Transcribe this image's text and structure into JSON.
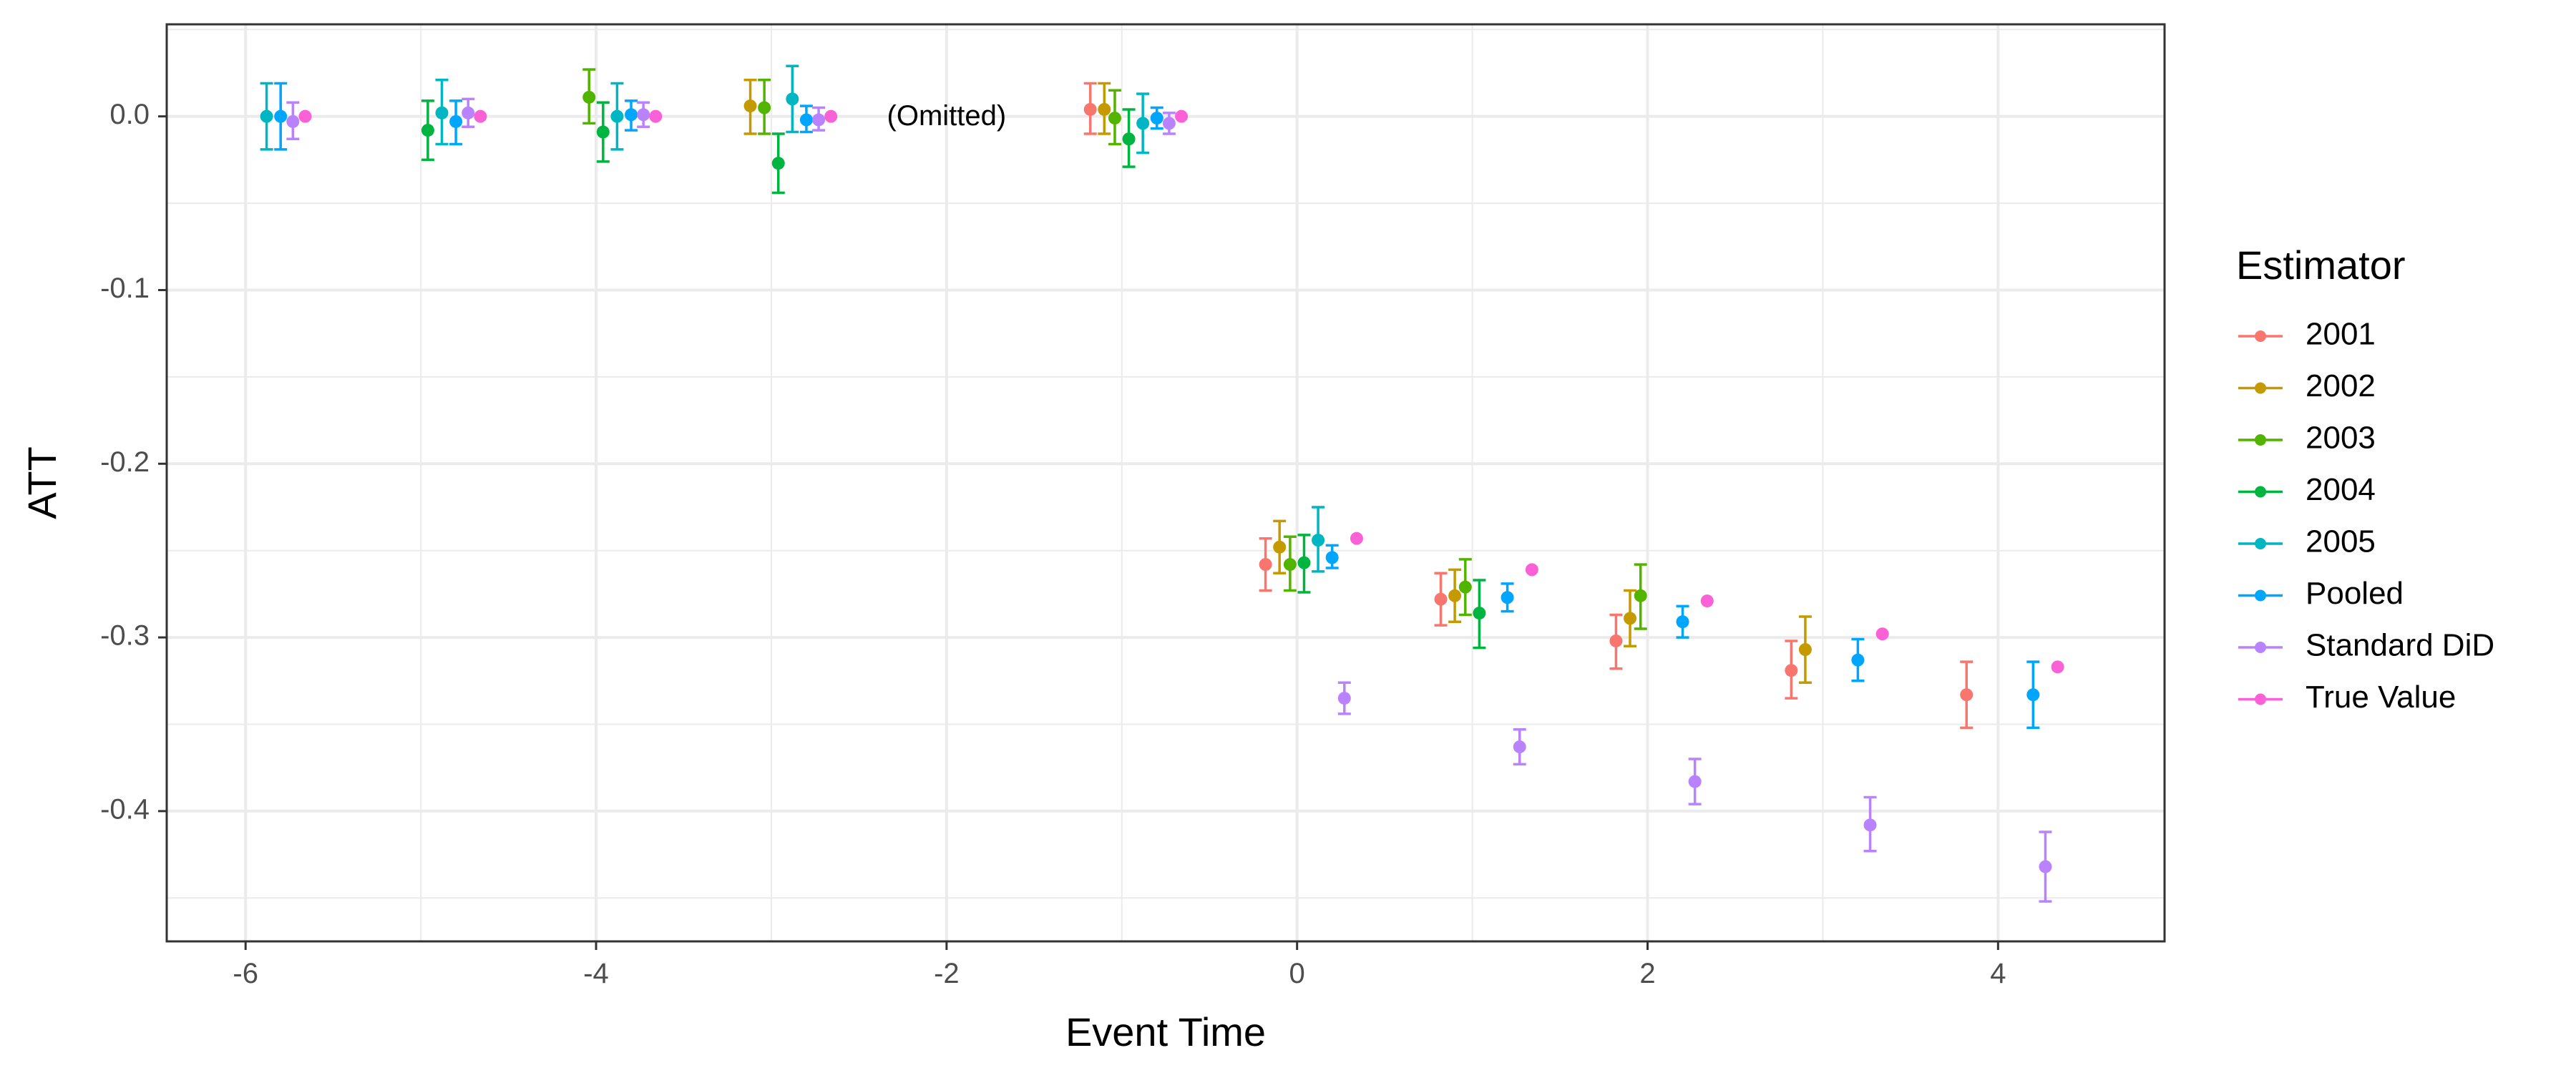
{
  "chart_data": {
    "type": "scatter",
    "xlabel": "Event Time",
    "ylabel": "ATT",
    "xlim": [
      -6.45,
      4.95
    ],
    "ylim": [
      -0.475,
      0.053
    ],
    "x_ticks": [
      -6,
      -4,
      -2,
      0,
      2,
      4
    ],
    "x_tick_labels": [
      "-6",
      "-4",
      "-2",
      "0",
      "2",
      "4"
    ],
    "y_ticks": [
      0.0,
      -0.1,
      -0.2,
      -0.3,
      -0.4
    ],
    "y_tick_labels": [
      "0.0",
      "-0.1",
      "-0.2",
      "-0.3",
      "-0.4"
    ],
    "grid": true,
    "legend": {
      "title": "Estimator",
      "placement": "right"
    },
    "annotation": {
      "text": "(Omitted)",
      "x": -2,
      "y": 0.0
    },
    "series": [
      {
        "name": "2001",
        "color": "#F8766D",
        "points": [
          {
            "x": -1.18,
            "y": 0.004,
            "lo": -0.01,
            "hi": 0.019
          },
          {
            "x": -0.18,
            "y": -0.258,
            "lo": -0.273,
            "hi": -0.243
          },
          {
            "x": 0.82,
            "y": -0.278,
            "lo": -0.293,
            "hi": -0.263
          },
          {
            "x": 1.82,
            "y": -0.302,
            "lo": -0.318,
            "hi": -0.287
          },
          {
            "x": 2.82,
            "y": -0.319,
            "lo": -0.335,
            "hi": -0.302
          },
          {
            "x": 3.82,
            "y": -0.333,
            "lo": -0.352,
            "hi": -0.314
          }
        ]
      },
      {
        "name": "2002",
        "color": "#C49A00",
        "points": [
          {
            "x": -3.12,
            "y": 0.006,
            "lo": -0.01,
            "hi": 0.021
          },
          {
            "x": -1.1,
            "y": 0.004,
            "lo": -0.01,
            "hi": 0.019
          },
          {
            "x": -0.1,
            "y": -0.248,
            "lo": -0.263,
            "hi": -0.233
          },
          {
            "x": 0.9,
            "y": -0.276,
            "lo": -0.291,
            "hi": -0.261
          },
          {
            "x": 1.9,
            "y": -0.289,
            "lo": -0.305,
            "hi": -0.273
          },
          {
            "x": 2.9,
            "y": -0.307,
            "lo": -0.326,
            "hi": -0.288
          }
        ]
      },
      {
        "name": "2003",
        "color": "#53B400",
        "points": [
          {
            "x": -4.04,
            "y": 0.011,
            "lo": -0.004,
            "hi": 0.027
          },
          {
            "x": -3.04,
            "y": 0.005,
            "lo": -0.01,
            "hi": 0.021
          },
          {
            "x": -1.04,
            "y": -0.001,
            "lo": -0.016,
            "hi": 0.015
          },
          {
            "x": -0.04,
            "y": -0.258,
            "lo": -0.273,
            "hi": -0.242
          },
          {
            "x": 0.96,
            "y": -0.271,
            "lo": -0.287,
            "hi": -0.255
          },
          {
            "x": 1.96,
            "y": -0.276,
            "lo": -0.295,
            "hi": -0.258
          }
        ]
      },
      {
        "name": "2004",
        "color": "#00B440",
        "points": [
          {
            "x": -4.96,
            "y": -0.008,
            "lo": -0.025,
            "hi": 0.009
          },
          {
            "x": -3.96,
            "y": -0.009,
            "lo": -0.026,
            "hi": 0.008
          },
          {
            "x": -2.96,
            "y": -0.027,
            "lo": -0.044,
            "hi": -0.01
          },
          {
            "x": -0.96,
            "y": -0.013,
            "lo": -0.029,
            "hi": 0.004
          },
          {
            "x": 0.04,
            "y": -0.257,
            "lo": -0.274,
            "hi": -0.241
          },
          {
            "x": 1.04,
            "y": -0.286,
            "lo": -0.306,
            "hi": -0.267
          }
        ]
      },
      {
        "name": "2005",
        "color": "#00B6C3",
        "points": [
          {
            "x": -5.88,
            "y": 0.0,
            "lo": -0.019,
            "hi": 0.019
          },
          {
            "x": -4.88,
            "y": 0.002,
            "lo": -0.016,
            "hi": 0.021
          },
          {
            "x": -3.88,
            "y": 0.0,
            "lo": -0.019,
            "hi": 0.019
          },
          {
            "x": -2.88,
            "y": 0.01,
            "lo": -0.009,
            "hi": 0.029
          },
          {
            "x": -0.88,
            "y": -0.004,
            "lo": -0.021,
            "hi": 0.013
          },
          {
            "x": 0.12,
            "y": -0.244,
            "lo": -0.262,
            "hi": -0.225
          }
        ]
      },
      {
        "name": "Pooled",
        "color": "#00A5FF",
        "points": [
          {
            "x": -5.8,
            "y": 0.0,
            "lo": -0.019,
            "hi": 0.019
          },
          {
            "x": -4.8,
            "y": -0.003,
            "lo": -0.016,
            "hi": 0.009
          },
          {
            "x": -3.8,
            "y": 0.001,
            "lo": -0.008,
            "hi": 0.009
          },
          {
            "x": -2.8,
            "y": -0.002,
            "lo": -0.009,
            "hi": 0.006
          },
          {
            "x": -0.8,
            "y": -0.001,
            "lo": -0.007,
            "hi": 0.005
          },
          {
            "x": 0.2,
            "y": -0.254,
            "lo": -0.26,
            "hi": -0.247
          },
          {
            "x": 1.2,
            "y": -0.277,
            "lo": -0.285,
            "hi": -0.269
          },
          {
            "x": 2.2,
            "y": -0.291,
            "lo": -0.3,
            "hi": -0.282
          },
          {
            "x": 3.2,
            "y": -0.313,
            "lo": -0.325,
            "hi": -0.301
          },
          {
            "x": 4.2,
            "y": -0.333,
            "lo": -0.352,
            "hi": -0.314
          }
        ]
      },
      {
        "name": "Standard DiD",
        "color": "#B983FF",
        "points": [
          {
            "x": -5.73,
            "y": -0.003,
            "lo": -0.013,
            "hi": 0.008
          },
          {
            "x": -4.73,
            "y": 0.002,
            "lo": -0.006,
            "hi": 0.01
          },
          {
            "x": -3.73,
            "y": 0.001,
            "lo": -0.006,
            "hi": 0.008
          },
          {
            "x": -2.73,
            "y": -0.002,
            "lo": -0.008,
            "hi": 0.005
          },
          {
            "x": -0.73,
            "y": -0.004,
            "lo": -0.01,
            "hi": 0.002
          },
          {
            "x": 0.27,
            "y": -0.335,
            "lo": -0.344,
            "hi": -0.326
          },
          {
            "x": 1.27,
            "y": -0.363,
            "lo": -0.373,
            "hi": -0.353
          },
          {
            "x": 2.27,
            "y": -0.383,
            "lo": -0.396,
            "hi": -0.37
          },
          {
            "x": 3.27,
            "y": -0.408,
            "lo": -0.423,
            "hi": -0.392
          },
          {
            "x": 4.27,
            "y": -0.432,
            "lo": -0.452,
            "hi": -0.412
          }
        ]
      },
      {
        "name": "True Value",
        "color": "#FB61D7",
        "points": [
          {
            "x": -5.66,
            "y": 0.0
          },
          {
            "x": -4.66,
            "y": 0.0
          },
          {
            "x": -3.66,
            "y": 0.0
          },
          {
            "x": -2.66,
            "y": 0.0
          },
          {
            "x": -0.66,
            "y": 0.0
          },
          {
            "x": 0.34,
            "y": -0.243
          },
          {
            "x": 1.34,
            "y": -0.261
          },
          {
            "x": 2.34,
            "y": -0.279
          },
          {
            "x": 3.34,
            "y": -0.298
          },
          {
            "x": 4.34,
            "y": -0.317
          }
        ]
      }
    ]
  }
}
